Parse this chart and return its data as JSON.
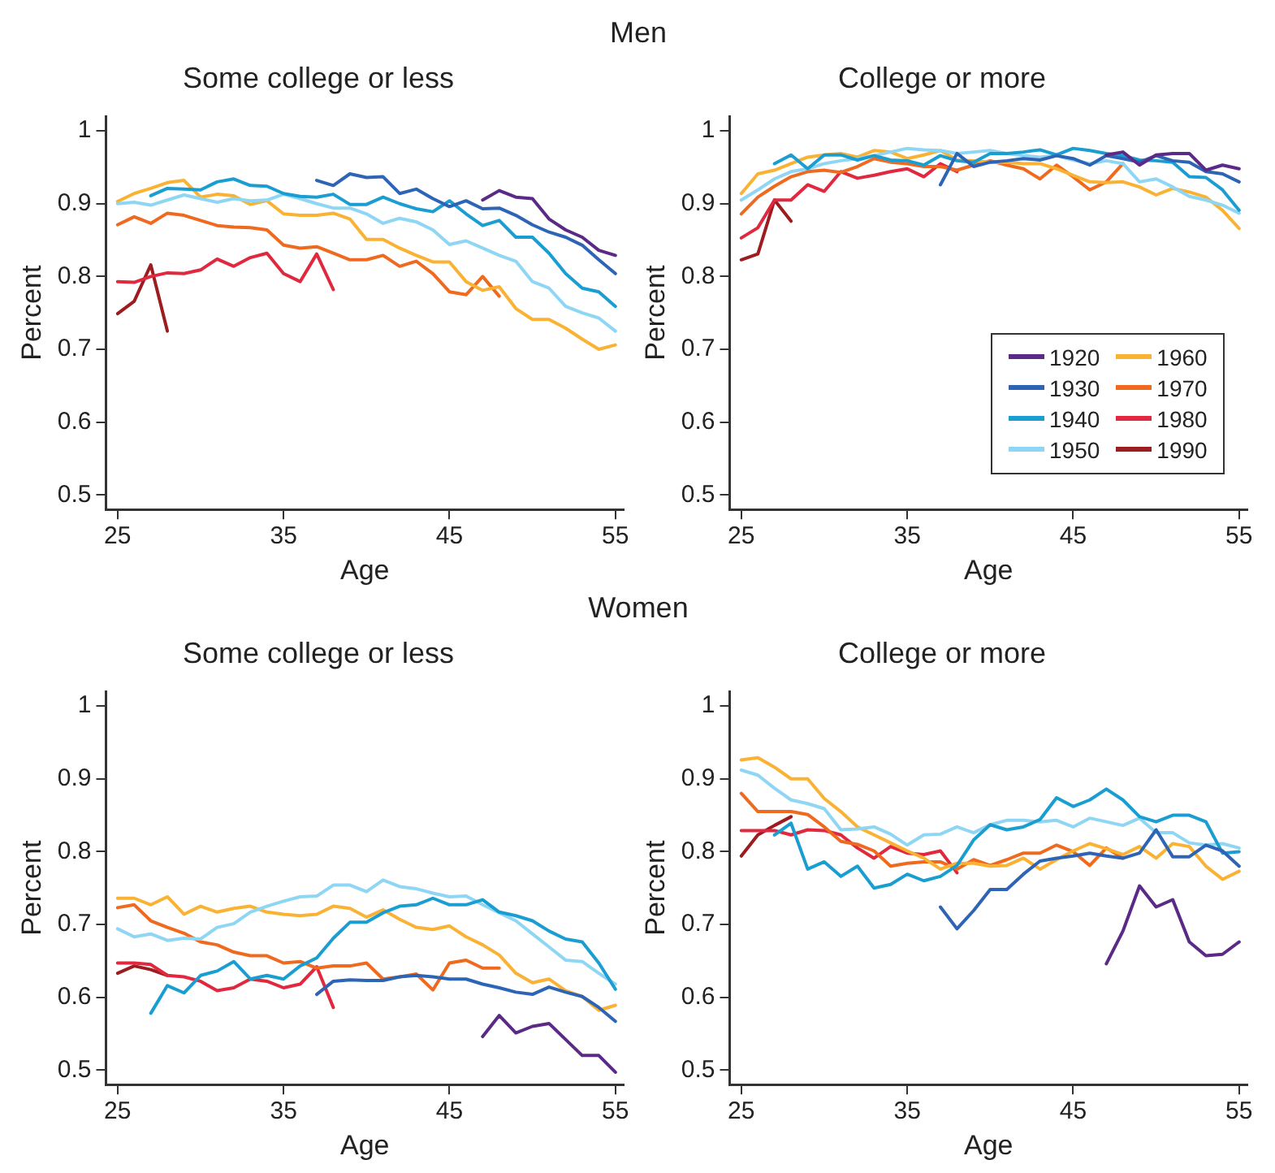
{
  "chart_data": [
    {
      "type": "line",
      "subtitle": "Men",
      "title": "Some college or less",
      "xlabel": "Age",
      "ylabel": "Percent",
      "xlim": [
        24.3,
        55.5
      ],
      "ylim": [
        0.48,
        1.02
      ],
      "xticks": [
        25,
        35,
        45,
        55
      ],
      "yticks": [
        0.5,
        0.6,
        0.7,
        0.8,
        0.9,
        1
      ],
      "series": [
        {
          "color": "#5b2a86",
          "x": [
            47,
            48,
            49,
            50,
            51,
            52,
            53,
            54,
            55
          ],
          "values": [
            0.905,
            0.918,
            0.909,
            0.907,
            0.879,
            0.864,
            0.854,
            0.836,
            0.829
          ]
        },
        {
          "color": "#2e64b5",
          "x": [
            37,
            38,
            39,
            40,
            41,
            42,
            43,
            44,
            45,
            46,
            47,
            48,
            49,
            50,
            51,
            52,
            53,
            54,
            55
          ],
          "values": [
            0.932,
            0.925,
            0.941,
            0.936,
            0.937,
            0.914,
            0.92,
            0.907,
            0.896,
            0.904,
            0.893,
            0.894,
            0.884,
            0.871,
            0.861,
            0.854,
            0.843,
            0.823,
            0.804
          ]
        },
        {
          "color": "#1a9ed1",
          "x": [
            27,
            28,
            29,
            30,
            31,
            32,
            33,
            34,
            35,
            36,
            37,
            38,
            39,
            40,
            41,
            42,
            43,
            44,
            45,
            46,
            47,
            48,
            49,
            50,
            51,
            52,
            53,
            54,
            55
          ],
          "values": [
            0.911,
            0.921,
            0.92,
            0.919,
            0.93,
            0.934,
            0.925,
            0.924,
            0.914,
            0.91,
            0.909,
            0.913,
            0.899,
            0.899,
            0.909,
            0.9,
            0.893,
            0.889,
            0.904,
            0.886,
            0.87,
            0.877,
            0.854,
            0.854,
            0.832,
            0.804,
            0.784,
            0.779,
            0.759
          ]
        },
        {
          "color": "#8fd6f5",
          "x": [
            25,
            26,
            27,
            28,
            29,
            30,
            31,
            32,
            33,
            34,
            35,
            36,
            37,
            38,
            39,
            40,
            41,
            42,
            43,
            44,
            45,
            46,
            47,
            48,
            49,
            50,
            51,
            52,
            53,
            54,
            55
          ],
          "values": [
            0.9,
            0.902,
            0.898,
            0.905,
            0.912,
            0.907,
            0.902,
            0.907,
            0.904,
            0.905,
            0.913,
            0.907,
            0.9,
            0.894,
            0.894,
            0.886,
            0.873,
            0.88,
            0.875,
            0.864,
            0.844,
            0.849,
            0.839,
            0.829,
            0.821,
            0.793,
            0.784,
            0.759,
            0.75,
            0.743,
            0.725
          ]
        },
        {
          "color": "#f9b233",
          "x": [
            25,
            26,
            27,
            28,
            29,
            30,
            31,
            32,
            33,
            34,
            35,
            36,
            37,
            38,
            39,
            40,
            41,
            42,
            43,
            44,
            45,
            46,
            47,
            48,
            49,
            50,
            51,
            52,
            53,
            54,
            55
          ],
          "values": [
            0.903,
            0.914,
            0.921,
            0.929,
            0.932,
            0.909,
            0.913,
            0.911,
            0.899,
            0.904,
            0.886,
            0.884,
            0.884,
            0.887,
            0.879,
            0.851,
            0.851,
            0.839,
            0.829,
            0.82,
            0.82,
            0.793,
            0.781,
            0.786,
            0.756,
            0.741,
            0.741,
            0.729,
            0.714,
            0.7,
            0.706
          ]
        },
        {
          "color": "#ef6a1e",
          "x": [
            25,
            26,
            27,
            28,
            29,
            30,
            31,
            32,
            33,
            34,
            35,
            36,
            37,
            38,
            39,
            40,
            41,
            42,
            43,
            44,
            45,
            46,
            47,
            48
          ],
          "values": [
            0.871,
            0.882,
            0.873,
            0.887,
            0.884,
            0.877,
            0.87,
            0.868,
            0.867,
            0.864,
            0.843,
            0.839,
            0.841,
            0.832,
            0.823,
            0.823,
            0.829,
            0.814,
            0.821,
            0.804,
            0.779,
            0.775,
            0.8,
            0.773
          ]
        },
        {
          "color": "#e0283e",
          "x": [
            25,
            26,
            27,
            28,
            29,
            30,
            31,
            32,
            33,
            34,
            35,
            36,
            37,
            38
          ],
          "values": [
            0.793,
            0.792,
            0.8,
            0.805,
            0.804,
            0.809,
            0.824,
            0.814,
            0.826,
            0.832,
            0.804,
            0.793,
            0.831,
            0.782
          ]
        },
        {
          "color": "#9c1c1f",
          "x": [
            25,
            26,
            27,
            28
          ],
          "values": [
            0.749,
            0.766,
            0.816,
            0.725
          ]
        }
      ]
    },
    {
      "type": "line",
      "title": "College or more",
      "xlabel": "Age",
      "ylabel": "Percent",
      "xlim": [
        24.3,
        55.5
      ],
      "ylim": [
        0.48,
        1.02
      ],
      "xticks": [
        25,
        35,
        45,
        55
      ],
      "yticks": [
        0.5,
        0.6,
        0.7,
        0.8,
        0.9,
        1
      ],
      "legend": "bottom right",
      "series": [
        {
          "name": "1920",
          "color": "#5b2a86",
          "x": [
            47,
            48,
            49,
            50,
            51,
            52,
            53,
            54,
            55
          ],
          "values": [
            0.967,
            0.971,
            0.953,
            0.967,
            0.969,
            0.969,
            0.946,
            0.953,
            0.948
          ]
        },
        {
          "name": "1930",
          "color": "#2e64b5",
          "x": [
            37,
            38,
            39,
            40,
            41,
            42,
            43,
            44,
            45,
            46,
            47,
            48,
            49,
            50,
            51,
            52,
            53,
            54,
            55
          ],
          "values": [
            0.926,
            0.969,
            0.951,
            0.957,
            0.959,
            0.962,
            0.96,
            0.966,
            0.962,
            0.953,
            0.966,
            0.962,
            0.957,
            0.966,
            0.959,
            0.957,
            0.944,
            0.941,
            0.93
          ]
        },
        {
          "name": "1940",
          "color": "#1a9ed1",
          "x": [
            27,
            28,
            29,
            30,
            31,
            32,
            33,
            34,
            35,
            36,
            37,
            38,
            39,
            40,
            41,
            42,
            43,
            44,
            45,
            46,
            47,
            48,
            49,
            50,
            51,
            52,
            53,
            54,
            55
          ],
          "values": [
            0.955,
            0.967,
            0.948,
            0.967,
            0.967,
            0.96,
            0.966,
            0.96,
            0.959,
            0.953,
            0.966,
            0.959,
            0.957,
            0.969,
            0.969,
            0.971,
            0.974,
            0.967,
            0.976,
            0.973,
            0.969,
            0.966,
            0.96,
            0.959,
            0.957,
            0.937,
            0.936,
            0.919,
            0.891
          ]
        },
        {
          "name": "1950",
          "color": "#8fd6f5",
          "x": [
            25,
            26,
            27,
            28,
            29,
            30,
            31,
            32,
            33,
            34,
            35,
            36,
            37,
            38,
            39,
            40,
            41,
            42,
            43,
            44,
            45,
            46,
            47,
            48,
            49,
            50,
            51,
            52,
            53,
            54,
            55
          ],
          "values": [
            0.905,
            0.919,
            0.934,
            0.944,
            0.948,
            0.955,
            0.959,
            0.962,
            0.966,
            0.971,
            0.976,
            0.974,
            0.973,
            0.969,
            0.971,
            0.973,
            0.969,
            0.966,
            0.964,
            0.966,
            0.96,
            0.955,
            0.959,
            0.955,
            0.93,
            0.934,
            0.923,
            0.91,
            0.905,
            0.898,
            0.887
          ]
        },
        {
          "name": "1960",
          "color": "#f9b233",
          "x": [
            25,
            26,
            27,
            28,
            29,
            30,
            31,
            32,
            33,
            34,
            35,
            36,
            37,
            38,
            39,
            40,
            41,
            42,
            43,
            44,
            45,
            46,
            47,
            48,
            49,
            50,
            51,
            52,
            53,
            54,
            55
          ],
          "values": [
            0.914,
            0.941,
            0.946,
            0.955,
            0.964,
            0.967,
            0.969,
            0.964,
            0.973,
            0.971,
            0.962,
            0.967,
            0.973,
            0.96,
            0.959,
            0.957,
            0.957,
            0.955,
            0.955,
            0.948,
            0.939,
            0.93,
            0.929,
            0.93,
            0.923,
            0.912,
            0.921,
            0.916,
            0.909,
            0.891,
            0.866
          ]
        },
        {
          "name": "1970",
          "color": "#ef6a1e",
          "x": [
            25,
            26,
            27,
            28,
            29,
            30,
            31,
            32,
            33,
            34,
            35,
            36,
            37,
            38,
            39,
            40,
            41,
            42,
            43,
            44,
            45,
            46,
            47,
            48
          ],
          "values": [
            0.886,
            0.909,
            0.924,
            0.937,
            0.944,
            0.946,
            0.943,
            0.951,
            0.962,
            0.957,
            0.955,
            0.951,
            0.951,
            0.946,
            0.953,
            0.959,
            0.953,
            0.948,
            0.934,
            0.953,
            0.937,
            0.919,
            0.93,
            0.955
          ]
        },
        {
          "name": "1980",
          "color": "#e0283e",
          "x": [
            25,
            26,
            27,
            28,
            29,
            30,
            31,
            32,
            33,
            34,
            35,
            36,
            37,
            38
          ],
          "values": [
            0.853,
            0.867,
            0.905,
            0.905,
            0.926,
            0.917,
            0.944,
            0.935,
            0.939,
            0.944,
            0.948,
            0.937,
            0.955,
            0.944
          ]
        },
        {
          "name": "1990",
          "color": "#9c1c1f",
          "x": [
            25,
            26,
            27,
            28
          ],
          "values": [
            0.823,
            0.831,
            0.905,
            0.876
          ]
        }
      ]
    },
    {
      "type": "line",
      "subtitle": "Women",
      "title": "Some college or less",
      "xlabel": "Age",
      "ylabel": "Percent",
      "xlim": [
        24.3,
        55.5
      ],
      "ylim": [
        0.48,
        1.02
      ],
      "xticks": [
        25,
        35,
        45,
        55
      ],
      "yticks": [
        0.5,
        0.6,
        0.7,
        0.8,
        0.9,
        1
      ],
      "series": [
        {
          "color": "#5b2a86",
          "x": [
            47,
            48,
            49,
            50,
            51,
            52,
            53,
            54,
            55
          ],
          "values": [
            0.546,
            0.575,
            0.551,
            0.56,
            0.564,
            0.542,
            0.52,
            0.52,
            0.497
          ]
        },
        {
          "color": "#2e64b5",
          "x": [
            37,
            38,
            39,
            40,
            41,
            42,
            43,
            44,
            45,
            46,
            47,
            48,
            49,
            50,
            51,
            52,
            53,
            54,
            55
          ],
          "values": [
            0.604,
            0.622,
            0.624,
            0.623,
            0.623,
            0.628,
            0.63,
            0.628,
            0.625,
            0.625,
            0.618,
            0.613,
            0.607,
            0.604,
            0.614,
            0.607,
            0.601,
            0.586,
            0.567
          ]
        },
        {
          "color": "#1a9ed1",
          "x": [
            27,
            28,
            29,
            30,
            31,
            32,
            33,
            34,
            35,
            36,
            37,
            38,
            39,
            40,
            41,
            42,
            43,
            44,
            45,
            46,
            47,
            48,
            49,
            50,
            51,
            52,
            53,
            54,
            55
          ],
          "values": [
            0.578,
            0.616,
            0.606,
            0.63,
            0.636,
            0.649,
            0.625,
            0.63,
            0.625,
            0.643,
            0.654,
            0.681,
            0.703,
            0.703,
            0.716,
            0.725,
            0.727,
            0.736,
            0.727,
            0.727,
            0.734,
            0.717,
            0.712,
            0.705,
            0.691,
            0.68,
            0.676,
            0.647,
            0.611
          ]
        },
        {
          "color": "#8fd6f5",
          "x": [
            25,
            26,
            27,
            28,
            29,
            30,
            31,
            32,
            33,
            34,
            35,
            36,
            37,
            38,
            39,
            40,
            41,
            42,
            43,
            44,
            45,
            46,
            47,
            48,
            49,
            50,
            51,
            52,
            53,
            54,
            55
          ],
          "values": [
            0.694,
            0.683,
            0.687,
            0.678,
            0.681,
            0.68,
            0.696,
            0.701,
            0.717,
            0.725,
            0.732,
            0.738,
            0.739,
            0.754,
            0.754,
            0.745,
            0.761,
            0.752,
            0.749,
            0.743,
            0.738,
            0.739,
            0.727,
            0.716,
            0.705,
            0.687,
            0.669,
            0.651,
            0.649,
            0.633,
            0.618
          ]
        },
        {
          "color": "#f9b233",
          "x": [
            25,
            26,
            27,
            28,
            29,
            30,
            31,
            32,
            33,
            34,
            35,
            36,
            37,
            38,
            39,
            40,
            41,
            42,
            43,
            44,
            45,
            46,
            47,
            48,
            49,
            50,
            51,
            52,
            53,
            54,
            55
          ],
          "values": [
            0.736,
            0.736,
            0.727,
            0.738,
            0.714,
            0.725,
            0.717,
            0.722,
            0.725,
            0.717,
            0.714,
            0.712,
            0.714,
            0.725,
            0.722,
            0.71,
            0.72,
            0.707,
            0.696,
            0.693,
            0.698,
            0.683,
            0.672,
            0.658,
            0.633,
            0.62,
            0.625,
            0.609,
            0.601,
            0.582,
            0.589
          ]
        },
        {
          "color": "#ef6a1e",
          "x": [
            25,
            26,
            27,
            28,
            29,
            30,
            31,
            32,
            33,
            34,
            35,
            36,
            37,
            38,
            39,
            40,
            41,
            42,
            43,
            44,
            45,
            46,
            47,
            48
          ],
          "values": [
            0.723,
            0.727,
            0.705,
            0.696,
            0.688,
            0.676,
            0.672,
            0.662,
            0.657,
            0.657,
            0.647,
            0.649,
            0.64,
            0.643,
            0.643,
            0.647,
            0.625,
            0.628,
            0.632,
            0.61,
            0.647,
            0.651,
            0.64,
            0.64
          ]
        },
        {
          "color": "#e0283e",
          "x": [
            25,
            26,
            27,
            28,
            29,
            30,
            31,
            32,
            33,
            34,
            35,
            36,
            37,
            38
          ],
          "values": [
            0.647,
            0.647,
            0.645,
            0.63,
            0.628,
            0.622,
            0.609,
            0.613,
            0.625,
            0.622,
            0.613,
            0.618,
            0.642,
            0.586
          ]
        },
        {
          "color": "#9c1c1f",
          "x": [
            25,
            26,
            27,
            28
          ],
          "values": [
            0.633,
            0.643,
            0.638,
            0.63
          ]
        }
      ]
    },
    {
      "type": "line",
      "title": "College or more",
      "xlabel": "Age",
      "ylabel": "Percent",
      "xlim": [
        24.3,
        55.5
      ],
      "ylim": [
        0.48,
        1.02
      ],
      "xticks": [
        25,
        35,
        45,
        55
      ],
      "yticks": [
        0.5,
        0.6,
        0.7,
        0.8,
        0.9,
        1
      ],
      "series": [
        {
          "color": "#5b2a86",
          "x": [
            47,
            48,
            49,
            50,
            51,
            52,
            53,
            54,
            55
          ],
          "values": [
            0.646,
            0.691,
            0.753,
            0.724,
            0.734,
            0.676,
            0.657,
            0.659,
            0.676
          ]
        },
        {
          "color": "#2e64b5",
          "x": [
            37,
            38,
            39,
            40,
            41,
            42,
            43,
            44,
            45,
            46,
            47,
            48,
            49,
            50,
            51,
            52,
            53,
            54,
            55
          ],
          "values": [
            0.724,
            0.694,
            0.719,
            0.748,
            0.748,
            0.769,
            0.787,
            0.791,
            0.794,
            0.798,
            0.794,
            0.791,
            0.798,
            0.83,
            0.793,
            0.793,
            0.809,
            0.801,
            0.78
          ]
        },
        {
          "color": "#1a9ed1",
          "x": [
            27,
            28,
            29,
            30,
            31,
            32,
            33,
            34,
            35,
            36,
            37,
            38,
            39,
            40,
            41,
            42,
            43,
            44,
            45,
            46,
            47,
            48,
            49,
            50,
            51,
            52,
            53,
            54,
            55
          ],
          "values": [
            0.823,
            0.839,
            0.776,
            0.786,
            0.766,
            0.78,
            0.75,
            0.755,
            0.769,
            0.76,
            0.766,
            0.781,
            0.816,
            0.837,
            0.83,
            0.834,
            0.844,
            0.874,
            0.862,
            0.871,
            0.886,
            0.871,
            0.848,
            0.841,
            0.85,
            0.85,
            0.841,
            0.798,
            0.8
          ]
        },
        {
          "color": "#8fd6f5",
          "x": [
            25,
            26,
            27,
            28,
            29,
            30,
            31,
            32,
            33,
            34,
            35,
            36,
            37,
            38,
            39,
            40,
            41,
            42,
            43,
            44,
            45,
            46,
            47,
            48,
            49,
            50,
            51,
            52,
            53,
            54,
            55
          ],
          "values": [
            0.912,
            0.905,
            0.887,
            0.871,
            0.866,
            0.859,
            0.83,
            0.831,
            0.834,
            0.824,
            0.809,
            0.823,
            0.824,
            0.834,
            0.826,
            0.837,
            0.843,
            0.843,
            0.841,
            0.843,
            0.834,
            0.846,
            0.841,
            0.836,
            0.846,
            0.826,
            0.826,
            0.812,
            0.809,
            0.811,
            0.805
          ]
        },
        {
          "color": "#f9b233",
          "x": [
            25,
            26,
            27,
            28,
            29,
            30,
            31,
            32,
            33,
            34,
            35,
            36,
            37,
            38,
            39,
            40,
            41,
            42,
            43,
            44,
            45,
            46,
            47,
            48,
            49,
            50,
            51,
            52,
            53,
            54,
            55
          ],
          "values": [
            0.926,
            0.929,
            0.916,
            0.9,
            0.9,
            0.873,
            0.855,
            0.834,
            0.823,
            0.812,
            0.801,
            0.791,
            0.776,
            0.784,
            0.784,
            0.78,
            0.781,
            0.791,
            0.776,
            0.789,
            0.801,
            0.811,
            0.804,
            0.796,
            0.807,
            0.791,
            0.811,
            0.807,
            0.78,
            0.762,
            0.773
          ]
        },
        {
          "color": "#ef6a1e",
          "x": [
            25,
            26,
            27,
            28,
            29,
            30,
            31,
            32,
            33,
            34,
            35,
            36,
            37,
            38,
            39,
            40,
            41,
            42,
            43,
            44,
            45,
            46,
            47,
            48
          ],
          "values": [
            0.88,
            0.855,
            0.855,
            0.855,
            0.851,
            0.834,
            0.814,
            0.81,
            0.801,
            0.78,
            0.784,
            0.786,
            0.786,
            0.776,
            0.789,
            0.781,
            0.789,
            0.798,
            0.798,
            0.809,
            0.8,
            0.781,
            0.805,
            0.791
          ]
        },
        {
          "color": "#e0283e",
          "x": [
            25,
            26,
            27,
            28,
            29,
            30,
            31,
            32,
            33,
            34,
            35,
            36,
            37,
            38
          ],
          "values": [
            0.829,
            0.829,
            0.829,
            0.823,
            0.83,
            0.829,
            0.823,
            0.805,
            0.791,
            0.807,
            0.798,
            0.796,
            0.801,
            0.771
          ]
        },
        {
          "color": "#9c1c1f",
          "x": [
            25,
            26,
            27,
            28
          ],
          "values": [
            0.794,
            0.823,
            0.836,
            0.848
          ]
        }
      ]
    }
  ]
}
